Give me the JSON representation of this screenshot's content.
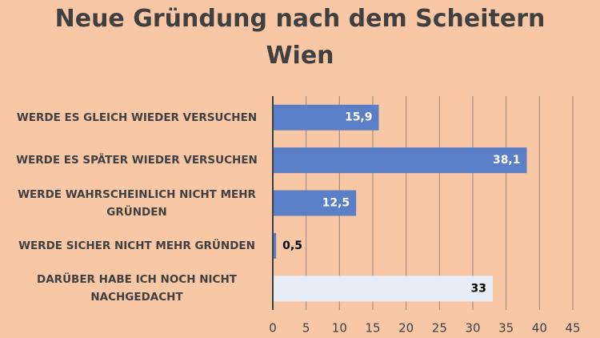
{
  "chart_data": {
    "type": "bar",
    "orientation": "horizontal",
    "title": "Neue Gründung nach dem Scheitern",
    "subtitle": "Wien",
    "categories": [
      "WERDE ES GLEICH WIEDER VERSUCHEN",
      "WERDE ES SPÄTER WIEDER VERSUCHEN",
      "WERDE WAHRSCHEINLICH NICHT MEHR GRÜNDEN",
      "WERDE SICHER NICHT MEHR GRÜNDEN",
      "DARÜBER HABE ICH NOCH NICHT NACHGEDACHT"
    ],
    "values": [
      15.9,
      38.1,
      12.5,
      0.5,
      33
    ],
    "value_labels": [
      "15,9",
      "38,1",
      "12,5",
      "0,5",
      "33"
    ],
    "colors": [
      "#5b7fc6",
      "#5b7fc6",
      "#5b7fc6",
      "#5b7fc6",
      "#e9edf5"
    ],
    "label_colors": [
      "#ffffff",
      "#ffffff",
      "#ffffff",
      "#000000",
      "#000000"
    ],
    "xlim": [
      0,
      45
    ],
    "xticks": [
      0,
      5,
      10,
      15,
      20,
      25,
      30,
      35,
      40,
      45
    ],
    "grid": true
  }
}
